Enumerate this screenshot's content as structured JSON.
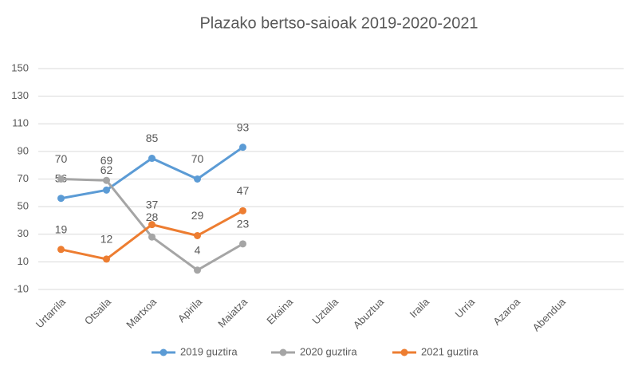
{
  "chart_data": {
    "type": "line",
    "title": "Plazako bertso-saioak 2019-2020-2021",
    "categories": [
      "Urtarrila",
      "Otsaila",
      "Martxoa",
      "Apirila",
      "Maiatza",
      "Ekaina",
      "Uztaila",
      "Abuztua",
      "Iraila",
      "Urria",
      "Azaroa",
      "Abendua"
    ],
    "series": [
      {
        "name": "2019 guztira",
        "color": "#5b9bd5",
        "values": [
          56,
          62,
          85,
          70,
          93,
          null,
          null,
          null,
          null,
          null,
          null,
          null
        ]
      },
      {
        "name": "2020 guztira",
        "color": "#a5a5a5",
        "values": [
          70,
          69,
          28,
          4,
          23,
          null,
          null,
          null,
          null,
          null,
          null,
          null
        ]
      },
      {
        "name": "2021 guztira",
        "color": "#ed7d31",
        "values": [
          19,
          12,
          37,
          29,
          47,
          null,
          null,
          null,
          null,
          null,
          null,
          null
        ]
      }
    ],
    "ylim": [
      -10,
      150
    ],
    "yticks": [
      -10,
      10,
      30,
      50,
      70,
      90,
      110,
      130,
      150
    ],
    "grid": true,
    "legend": "bottom"
  }
}
